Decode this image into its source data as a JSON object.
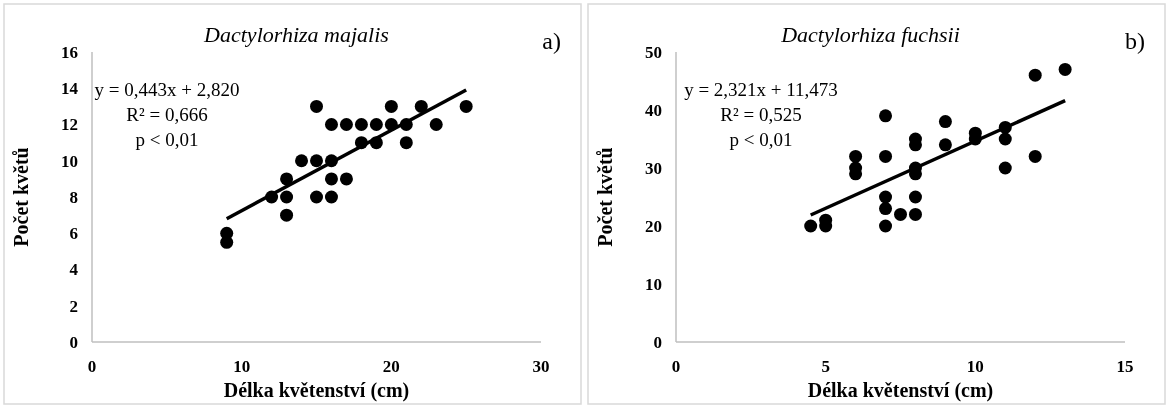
{
  "chart_data": [
    {
      "type": "scatter",
      "title": "Dactylorhiza majalis",
      "xlabel": "Délka květenství (cm)",
      "ylabel": "Počet květů",
      "annotations": [
        "y = 0,443x + 2,820",
        "R² = 0,666",
        "p < 0,01",
        "a)"
      ],
      "xlim": [
        0,
        30
      ],
      "xticks": [
        0,
        10,
        20,
        30
      ],
      "ylim": [
        0,
        16
      ],
      "yticks": [
        0,
        2,
        4,
        6,
        8,
        10,
        12,
        14,
        16
      ],
      "grid": false,
      "marker": "circle",
      "series": [
        {
          "color": "#000000",
          "x": [
            9,
            9,
            12,
            13,
            13,
            13,
            14,
            15,
            15,
            15,
            16,
            16,
            16,
            16,
            17,
            17,
            18,
            18,
            19,
            19,
            20,
            20,
            21,
            21,
            22,
            23,
            25
          ],
          "values": [
            6,
            5.5,
            8,
            9,
            8,
            7,
            10,
            13,
            10,
            8,
            12,
            10,
            9,
            8,
            12,
            9,
            12,
            11,
            12,
            11,
            13,
            12,
            12,
            11,
            13,
            12,
            13
          ]
        },
        {
          "type": "line",
          "color": "#000000",
          "x": [
            9,
            25
          ],
          "values": [
            6.8,
            13.9
          ],
          "marker": "none",
          "line_style": "solid"
        }
      ]
    },
    {
      "type": "scatter",
      "title": "Dactylorhiza fuchsii",
      "xlabel": "Délka květenství (cm)",
      "ylabel": "Počet květů",
      "annotations": [
        "y = 2,321x + 11,473",
        "R² = 0,525",
        "p < 0,01",
        "b)"
      ],
      "xlim": [
        0,
        15
      ],
      "xticks": [
        0,
        5,
        10,
        15
      ],
      "ylim": [
        0,
        50
      ],
      "yticks": [
        0,
        10,
        20,
        30,
        40,
        50
      ],
      "grid": false,
      "marker": "circle",
      "series": [
        {
          "color": "#000000",
          "x": [
            4.5,
            5,
            5,
            6,
            6,
            6,
            7,
            7,
            7,
            7,
            7,
            7.5,
            8,
            8,
            8,
            8,
            8,
            8,
            9,
            9,
            10,
            10,
            11,
            11,
            11,
            12,
            12,
            13
          ],
          "values": [
            20,
            20,
            21,
            32,
            30,
            29,
            39,
            32,
            25,
            23,
            20,
            22,
            35,
            34,
            30,
            29,
            25,
            22,
            38,
            34,
            36,
            35,
            37,
            35,
            30,
            46,
            32,
            47
          ]
        },
        {
          "type": "line",
          "color": "#000000",
          "x": [
            4.5,
            13
          ],
          "values": [
            21.9,
            41.6
          ],
          "marker": "none",
          "line_style": "solid"
        }
      ]
    }
  ]
}
